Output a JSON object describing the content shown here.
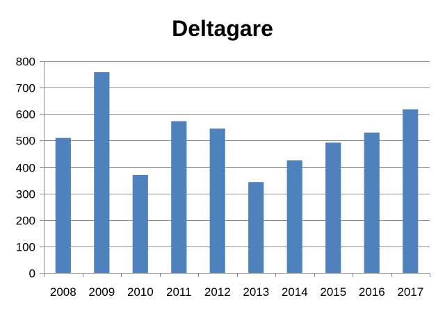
{
  "chart_data": {
    "type": "bar",
    "title": "Deltagare",
    "xlabel": "",
    "ylabel": "",
    "categories": [
      "2008",
      "2009",
      "2010",
      "2011",
      "2012",
      "2013",
      "2014",
      "2015",
      "2016",
      "2017"
    ],
    "values": [
      510,
      758,
      370,
      573,
      545,
      343,
      425,
      492,
      530,
      618
    ],
    "ylim": [
      0,
      800
    ],
    "yticks": [
      0,
      100,
      200,
      300,
      400,
      500,
      600,
      700,
      800
    ],
    "grid": true,
    "legend": "none",
    "bar_color": "#4f81bd"
  }
}
